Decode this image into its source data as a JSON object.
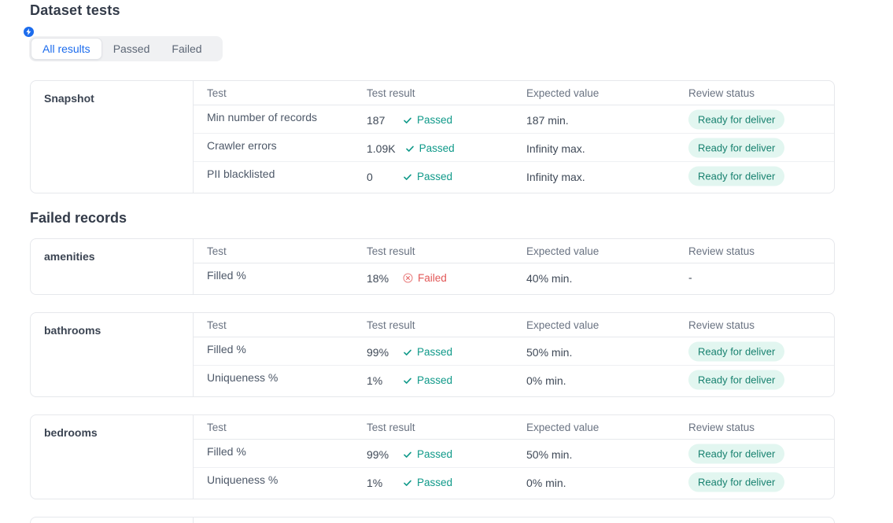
{
  "page": {
    "title": "Dataset tests"
  },
  "tabs": [
    {
      "label": "All results",
      "active": true
    },
    {
      "label": "Passed",
      "active": false
    },
    {
      "label": "Failed",
      "active": false
    }
  ],
  "columns": [
    "Test",
    "Test result",
    "Expected value",
    "Review status"
  ],
  "icons": {
    "tabs_hint": "lightning-bolt",
    "passed": "check",
    "failed": "circle-x"
  },
  "theme": {
    "accent_blue": "#1c6ced",
    "hint_badge_blue": "#3279f0",
    "passed_teal": "#0f9989",
    "failed_red": "#e25757",
    "badge_bg": "#e2f6f0",
    "badge_text": "#17816f"
  },
  "sections": [
    {
      "heading": "",
      "cards": [
        {
          "name": "Snapshot",
          "rows": [
            {
              "test": "Min number of records",
              "result_value": "187",
              "status": "Passed",
              "expected": "187 min.",
              "review": "Ready for deliver"
            },
            {
              "test": "Crawler errors",
              "result_value": "1.09K",
              "status": "Passed",
              "expected": "Infinity max.",
              "review": "Ready for deliver"
            },
            {
              "test": "PII blacklisted",
              "result_value": "0",
              "status": "Passed",
              "expected": "Infinity max.",
              "review": "Ready for deliver"
            }
          ]
        }
      ]
    },
    {
      "heading": "Failed records",
      "cards": [
        {
          "name": "amenities",
          "rows": [
            {
              "test": "Filled %",
              "result_value": "18%",
              "status": "Failed",
              "expected": "40% min.",
              "review": "-"
            }
          ]
        },
        {
          "name": "bathrooms",
          "rows": [
            {
              "test": "Filled %",
              "result_value": "99%",
              "status": "Passed",
              "expected": "50% min.",
              "review": "Ready for deliver"
            },
            {
              "test": "Uniqueness %",
              "result_value": "1%",
              "status": "Passed",
              "expected": "0% min.",
              "review": "Ready for deliver"
            }
          ]
        },
        {
          "name": "bedrooms",
          "rows": [
            {
              "test": "Filled %",
              "result_value": "99%",
              "status": "Passed",
              "expected": "50% min.",
              "review": "Ready for deliver"
            },
            {
              "test": "Uniqueness %",
              "result_value": "1%",
              "status": "Passed",
              "expected": "0% min.",
              "review": "Ready for deliver"
            }
          ]
        }
      ]
    }
  ]
}
